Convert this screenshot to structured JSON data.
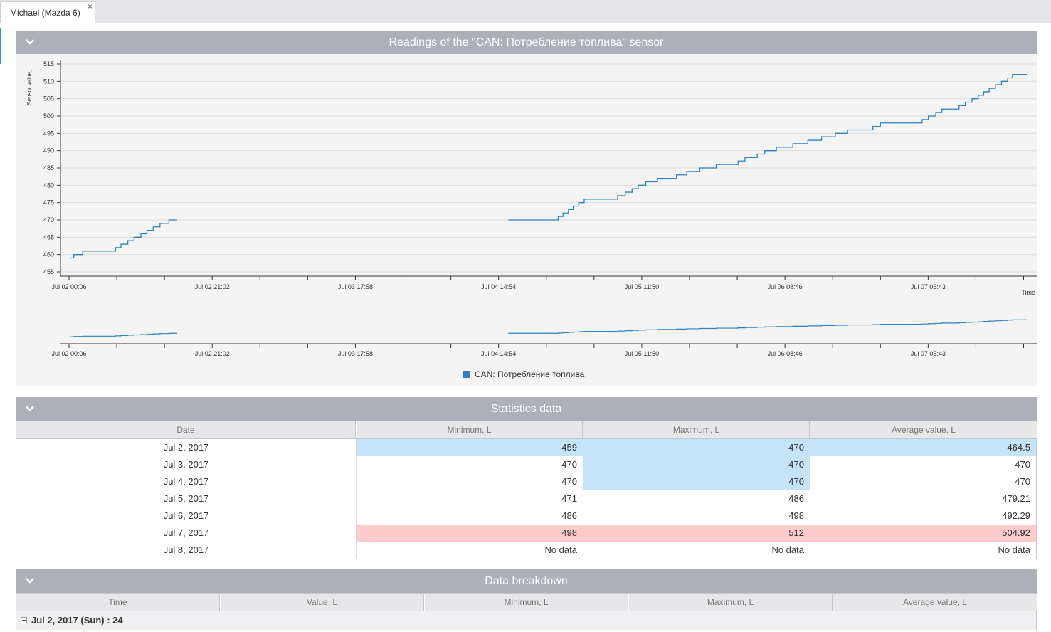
{
  "tab": {
    "label": "Michael (Mazda 6)",
    "close": "×"
  },
  "chart_panel": {
    "title": "Readings of the \"CAN: Потребление топлива\" sensor",
    "legend_label": "CAN: Потребление топлива"
  },
  "stats_panel": {
    "title": "Statistics data",
    "columns": [
      "Date",
      "Minimum, L",
      "Maximum, L",
      "Average value, L"
    ],
    "rows": [
      {
        "date": "Jul 2, 2017",
        "min": "459",
        "max": "470",
        "avg": "464.5"
      },
      {
        "date": "Jul 3, 2017",
        "min": "470",
        "max": "470",
        "avg": "470"
      },
      {
        "date": "Jul 4, 2017",
        "min": "470",
        "max": "470",
        "avg": "470"
      },
      {
        "date": "Jul 5, 2017",
        "min": "471",
        "max": "486",
        "avg": "479.21"
      },
      {
        "date": "Jul 6, 2017",
        "min": "486",
        "max": "498",
        "avg": "492.29"
      },
      {
        "date": "Jul 7, 2017",
        "min": "498",
        "max": "512",
        "avg": "504.92"
      },
      {
        "date": "Jul 8, 2017",
        "min": "No data",
        "max": "No data",
        "avg": "No data"
      }
    ],
    "highlight_colors": {
      "lowest": "#c5e4fa",
      "highest": "#fdcbcb"
    }
  },
  "breakdown_panel": {
    "title": "Data breakdown",
    "columns": [
      "Time",
      "Value, L",
      "Minimum, L",
      "Maximum, L",
      "Average value, L"
    ],
    "group_label": "Jul 2, 2017 (Sun) : 24"
  },
  "colors": {
    "accent": "#3d8fcf",
    "series": "#2f7fc1",
    "header": "#aeb0b9"
  },
  "chart_data": {
    "type": "line",
    "title": "",
    "xlabel": "Time",
    "ylabel": "Sensor value, L",
    "ylim": [
      455,
      515
    ],
    "yticks": [
      455,
      460,
      465,
      470,
      475,
      480,
      485,
      490,
      495,
      500,
      505,
      510,
      515
    ],
    "xtick_labels": [
      "Jul 02 00:06",
      "Jul 02 21:02",
      "Jul 03 17:58",
      "Jul 04 14:54",
      "Jul 05 11:50",
      "Jul 06 08:46",
      "Jul 07 05:43"
    ],
    "x_unit": "hours since Jul 02 00:06",
    "x_range": [
      0,
      140
    ],
    "grid": true,
    "legend": "bottom-center",
    "series": [
      {
        "name": "CAN: Потребление топлива",
        "segments": [
          [
            [
              0.2,
              459
            ],
            [
              0.7,
              460
            ],
            [
              2,
              461
            ],
            [
              6.8,
              462
            ],
            [
              7.6,
              463
            ],
            [
              8.6,
              464
            ],
            [
              9.5,
              465
            ],
            [
              10.5,
              466
            ],
            [
              11.4,
              467
            ],
            [
              12.3,
              468
            ],
            [
              13.3,
              469
            ],
            [
              14.6,
              470
            ],
            [
              15.8,
              470
            ]
          ],
          [
            [
              64.2,
              470
            ],
            [
              71.5,
              471
            ],
            [
              72.2,
              472
            ],
            [
              73,
              473
            ],
            [
              73.7,
              474
            ],
            [
              74.5,
              475
            ],
            [
              75.3,
              476
            ],
            [
              80.2,
              477
            ],
            [
              81.3,
              478
            ],
            [
              82.3,
              479
            ],
            [
              83.2,
              480
            ],
            [
              84.3,
              481
            ],
            [
              86,
              482
            ],
            [
              88.8,
              483
            ],
            [
              90.3,
              484
            ],
            [
              92.2,
              485
            ],
            [
              94.6,
              486
            ],
            [
              97.8,
              487
            ],
            [
              98.8,
              488
            ],
            [
              100.6,
              489
            ],
            [
              101.7,
              490
            ],
            [
              103.4,
              491
            ],
            [
              105.8,
              492
            ],
            [
              108,
              493
            ],
            [
              110,
              494
            ],
            [
              112,
              495
            ],
            [
              113.8,
              496
            ],
            [
              117.5,
              497
            ],
            [
              118.6,
              498
            ],
            [
              124,
              498
            ],
            [
              124.7,
              499
            ],
            [
              125.6,
              500
            ],
            [
              126.7,
              501
            ],
            [
              127.6,
              502
            ],
            [
              130.1,
              503
            ],
            [
              131,
              504
            ],
            [
              132,
              505
            ],
            [
              132.9,
              506
            ],
            [
              133.7,
              507
            ],
            [
              134.5,
              508
            ],
            [
              135.4,
              509
            ],
            [
              136.3,
              510
            ],
            [
              137.2,
              511
            ],
            [
              137.9,
              512
            ],
            [
              140,
              512
            ]
          ]
        ]
      }
    ]
  }
}
